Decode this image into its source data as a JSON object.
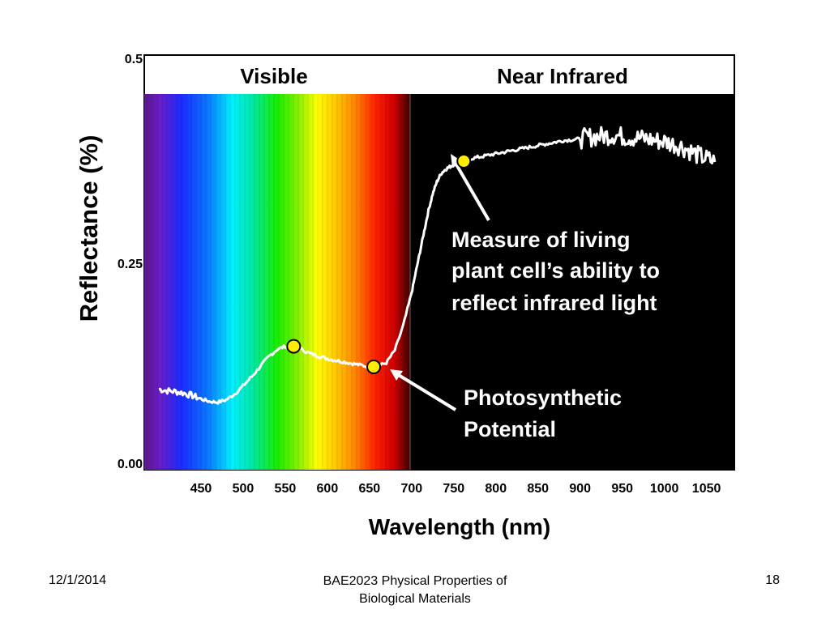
{
  "chart_data": {
    "type": "line",
    "xlabel": "Wavelength (nm)",
    "ylabel": "Reflectance  (%)",
    "y_ticks": [
      "0.00",
      "0.25",
      "0.5"
    ],
    "x_ticks": [
      "450",
      "500",
      "550",
      "600",
      "650",
      "700",
      "750",
      "800",
      "850",
      "900",
      "950",
      "1000",
      "1050"
    ],
    "x_tick_values": [
      450,
      500,
      550,
      600,
      650,
      700,
      750,
      800,
      850,
      900,
      950,
      1000,
      1050
    ],
    "ylim": [
      0,
      0.5
    ],
    "regions": [
      "Visible",
      "Near Infrared"
    ],
    "series": [
      {
        "x": [
          400,
          410,
          420,
          430,
          440,
          450,
          460,
          470,
          480,
          490,
          500,
          510,
          520,
          530,
          540,
          550,
          560,
          570,
          580,
          590,
          600,
          610,
          620,
          630,
          640,
          650,
          660,
          670,
          680,
          690,
          700,
          705,
          710,
          715,
          720,
          725,
          730,
          735,
          740,
          745,
          750,
          755,
          760,
          770,
          780,
          790,
          800,
          810,
          820,
          830,
          840,
          850,
          860,
          870,
          880,
          890,
          900,
          910,
          920,
          930,
          940,
          950,
          960,
          970,
          980,
          990,
          1000,
          1010,
          1020,
          1030,
          1040,
          1050,
          1060
        ],
        "y": [
          0.098,
          0.096,
          0.095,
          0.093,
          0.09,
          0.086,
          0.083,
          0.082,
          0.085,
          0.092,
          0.102,
          0.113,
          0.125,
          0.137,
          0.146,
          0.15,
          0.15,
          0.146,
          0.141,
          0.138,
          0.135,
          0.133,
          0.131,
          0.129,
          0.127,
          0.125,
          0.126,
          0.13,
          0.145,
          0.175,
          0.215,
          0.24,
          0.265,
          0.29,
          0.315,
          0.335,
          0.35,
          0.36,
          0.365,
          0.368,
          0.371,
          0.373,
          0.375,
          0.378,
          0.38,
          0.382,
          0.384,
          0.386,
          0.388,
          0.39,
          0.392,
          0.394,
          0.396,
          0.398,
          0.4,
          0.401,
          0.402,
          0.404,
          0.405,
          0.406,
          0.407,
          0.405,
          0.404,
          0.403,
          0.402,
          0.4,
          0.399,
          0.396,
          0.393,
          0.388,
          0.382,
          0.378,
          0.374
        ]
      }
    ],
    "markers": [
      {
        "x": 560,
        "y": 0.15
      },
      {
        "x": 655,
        "y": 0.125
      },
      {
        "x": 762,
        "y": 0.375
      }
    ],
    "annotations": [
      {
        "lines": [
          "Measure of living",
          "plant cell’s ability to",
          "reflect infrared light"
        ]
      },
      {
        "lines": [
          "Photosynthetic",
          "Potential"
        ]
      }
    ]
  },
  "footer": {
    "date": "12/1/2014",
    "title_lines": [
      "BAE2023 Physical Properties of",
      "Biological Materials"
    ],
    "page": "18"
  },
  "colors": {
    "nir_background": "#000000",
    "curve": "#ffffff",
    "marker_fill": "#ffee00",
    "arrow": "#ffffff"
  }
}
